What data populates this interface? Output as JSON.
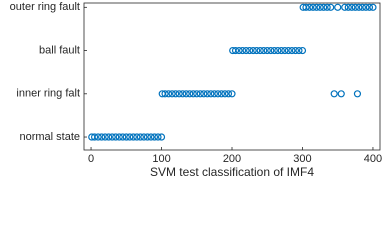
{
  "chart_data": {
    "type": "scatter",
    "xlabel": "SVM test classification of IMF4",
    "color": "#0072bd",
    "xlim": [
      -10,
      410
    ],
    "xticks": [
      0,
      100,
      200,
      300,
      400
    ],
    "ylim": [
      0.7,
      4.1
    ],
    "yticks": [
      {
        "value": 1,
        "label": "normal state"
      },
      {
        "value": 2,
        "label": "inner ring falt"
      },
      {
        "value": 3,
        "label": "ball fault"
      },
      {
        "value": 4,
        "label": "outer ring fault"
      }
    ],
    "series": [
      {
        "x": [
          1,
          5,
          10,
          15,
          20,
          25,
          30,
          35,
          40,
          45,
          50,
          55,
          60,
          65,
          70,
          75,
          80,
          85,
          90,
          95,
          100,
          101,
          105,
          110,
          115,
          120,
          125,
          130,
          135,
          140,
          145,
          150,
          155,
          160,
          165,
          170,
          175,
          180,
          185,
          190,
          195,
          200,
          201,
          205,
          210,
          215,
          220,
          225,
          230,
          235,
          240,
          245,
          250,
          255,
          260,
          265,
          270,
          275,
          280,
          285,
          290,
          295,
          300,
          301,
          305,
          310,
          315,
          320,
          325,
          330,
          335,
          340,
          345,
          350,
          355,
          360,
          365,
          370,
          375,
          380,
          385,
          390,
          395,
          400,
          378
        ],
        "y": [
          1,
          1,
          1,
          1,
          1,
          1,
          1,
          1,
          1,
          1,
          1,
          1,
          1,
          1,
          1,
          1,
          1,
          1,
          1,
          1,
          1,
          2,
          2,
          2,
          2,
          2,
          2,
          2,
          2,
          2,
          2,
          2,
          2,
          2,
          2,
          2,
          2,
          2,
          2,
          2,
          2,
          2,
          3,
          3,
          3,
          3,
          3,
          3,
          3,
          3,
          3,
          3,
          3,
          3,
          3,
          3,
          3,
          3,
          3,
          3,
          3,
          3,
          3,
          4,
          4,
          4,
          4,
          4,
          4,
          4,
          4,
          4,
          2,
          4,
          2,
          4,
          4,
          4,
          4,
          4,
          4,
          4,
          4,
          4,
          2
        ]
      }
    ]
  }
}
